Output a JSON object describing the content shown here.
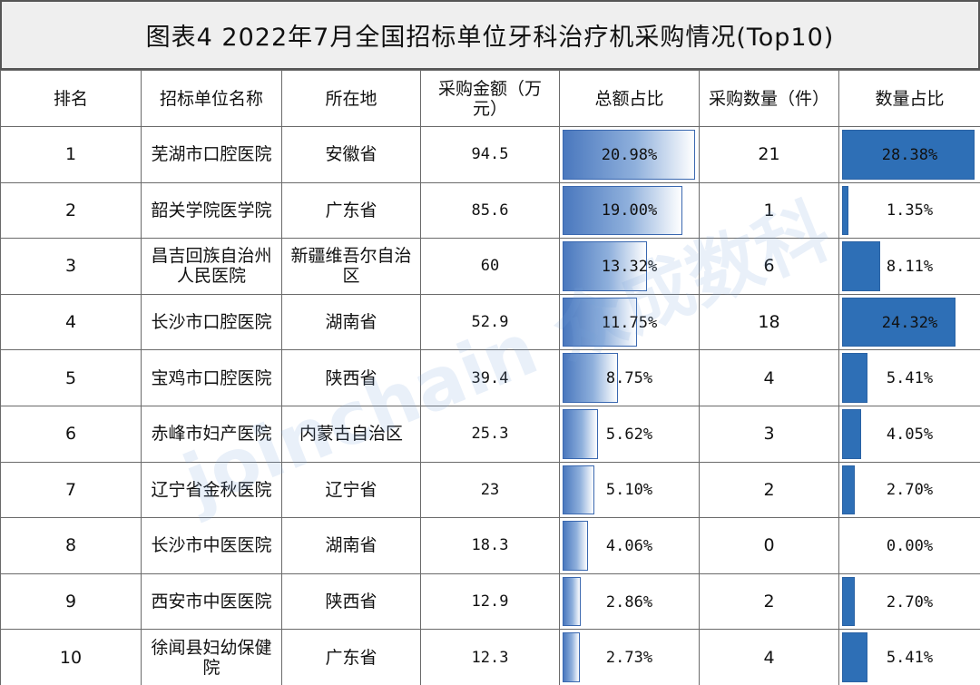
{
  "title": "图表4   2022年7月全国招标单位牙科治疗机采购情况(Top10)",
  "watermark": "joinchain 众成数科",
  "colors": {
    "amount_bar_gradient": [
      "#4a78be",
      "#ffffff"
    ],
    "quantity_bar": "#2e6fb6",
    "header_bg": "#efefef",
    "grid": "#6a6a6a"
  },
  "headers": {
    "rank": "排名",
    "unit": "招标单位名称",
    "location": "所在地",
    "amount": "采购金额（万元）",
    "amount_share": "总额占比",
    "quantity": "采购数量（件）",
    "quantity_share": "数量占比"
  },
  "chart_data": {
    "type": "table",
    "columns": [
      "排名",
      "招标单位名称",
      "所在地",
      "采购金额（万元）",
      "总额占比",
      "采购数量（件）",
      "数量占比"
    ],
    "bar_scale_max_percent": {
      "amount_share": 20.98,
      "quantity_share": 28.38
    },
    "rows": [
      {
        "rank": "1",
        "unit": "芜湖市口腔医院",
        "location": "安徽省",
        "amount": "94.5",
        "amount_share_label": "20.98%",
        "amount_share": 20.98,
        "quantity": "21",
        "quantity_share_label": "28.38%",
        "quantity_share": 28.38
      },
      {
        "rank": "2",
        "unit": "韶关学院医学院",
        "location": "广东省",
        "amount": "85.6",
        "amount_share_label": "19.00%",
        "amount_share": 19.0,
        "quantity": "1",
        "quantity_share_label": "1.35%",
        "quantity_share": 1.35
      },
      {
        "rank": "3",
        "unit": "昌吉回族自治州人民医院",
        "location": "新疆维吾尔自治区",
        "amount": "60",
        "amount_share_label": "13.32%",
        "amount_share": 13.32,
        "quantity": "6",
        "quantity_share_label": "8.11%",
        "quantity_share": 8.11
      },
      {
        "rank": "4",
        "unit": "长沙市口腔医院",
        "location": "湖南省",
        "amount": "52.9",
        "amount_share_label": "11.75%",
        "amount_share": 11.75,
        "quantity": "18",
        "quantity_share_label": "24.32%",
        "quantity_share": 24.32
      },
      {
        "rank": "5",
        "unit": "宝鸡市口腔医院",
        "location": "陕西省",
        "amount": "39.4",
        "amount_share_label": "8.75%",
        "amount_share": 8.75,
        "quantity": "4",
        "quantity_share_label": "5.41%",
        "quantity_share": 5.41
      },
      {
        "rank": "6",
        "unit": "赤峰市妇产医院",
        "location": "内蒙古自治区",
        "amount": "25.3",
        "amount_share_label": "5.62%",
        "amount_share": 5.62,
        "quantity": "3",
        "quantity_share_label": "4.05%",
        "quantity_share": 4.05
      },
      {
        "rank": "7",
        "unit": "辽宁省金秋医院",
        "location": "辽宁省",
        "amount": "23",
        "amount_share_label": "5.10%",
        "amount_share": 5.1,
        "quantity": "2",
        "quantity_share_label": "2.70%",
        "quantity_share": 2.7
      },
      {
        "rank": "8",
        "unit": "长沙市中医医院",
        "location": "湖南省",
        "amount": "18.3",
        "amount_share_label": "4.06%",
        "amount_share": 4.06,
        "quantity": "0",
        "quantity_share_label": "0.00%",
        "quantity_share": 0.0
      },
      {
        "rank": "9",
        "unit": "西安市中医医院",
        "location": "陕西省",
        "amount": "12.9",
        "amount_share_label": "2.86%",
        "amount_share": 2.86,
        "quantity": "2",
        "quantity_share_label": "2.70%",
        "quantity_share": 2.7
      },
      {
        "rank": "10",
        "unit": "徐闻县妇幼保健院",
        "location": "广东省",
        "amount": "12.3",
        "amount_share_label": "2.73%",
        "amount_share": 2.73,
        "quantity": "4",
        "quantity_share_label": "5.41%",
        "quantity_share": 5.41
      }
    ]
  }
}
